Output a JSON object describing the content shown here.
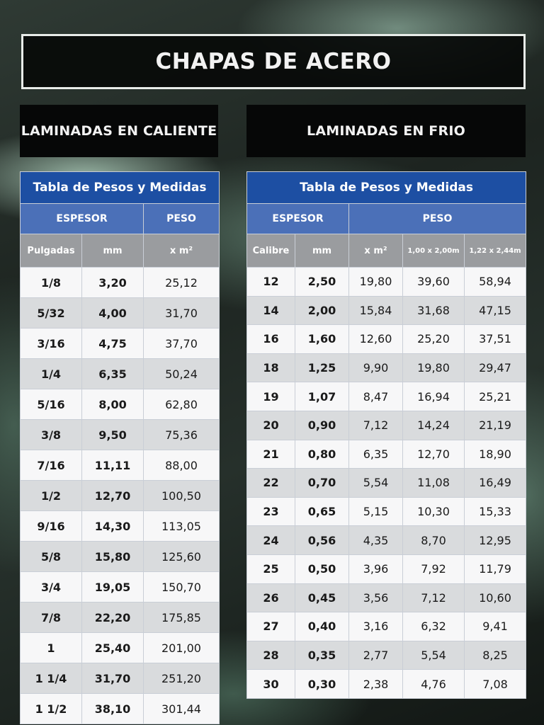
{
  "title": "CHAPAS DE ACERO",
  "left_section": {
    "heading": "LAMINADAS EN CALIENTE",
    "caption": "Tabla de Pesos y Medidas",
    "group_headers": [
      "ESPESOR",
      "PESO"
    ],
    "columns": [
      "Pulgadas",
      "mm",
      "x m²"
    ],
    "rows": [
      [
        "1/8",
        "3,20",
        "25,12"
      ],
      [
        "5/32",
        "4,00",
        "31,70"
      ],
      [
        "3/16",
        "4,75",
        "37,70"
      ],
      [
        "1/4",
        "6,35",
        "50,24"
      ],
      [
        "5/16",
        "8,00",
        "62,80"
      ],
      [
        "3/8",
        "9,50",
        "75,36"
      ],
      [
        "7/16",
        "11,11",
        "88,00"
      ],
      [
        "1/2",
        "12,70",
        "100,50"
      ],
      [
        "9/16",
        "14,30",
        "113,05"
      ],
      [
        "5/8",
        "15,80",
        "125,60"
      ],
      [
        "3/4",
        "19,05",
        "150,70"
      ],
      [
        "7/8",
        "22,20",
        "175,85"
      ],
      [
        "1",
        "25,40",
        "201,00"
      ],
      [
        "1  1/4",
        "31,70",
        "251,20"
      ],
      [
        "1  1/2",
        "38,10",
        "301,44"
      ]
    ]
  },
  "right_section": {
    "heading": "LAMINADAS EN FRIO",
    "caption": "Tabla de Pesos y Medidas",
    "group_headers": [
      "ESPESOR",
      "PESO"
    ],
    "columns": [
      "Calibre",
      "mm",
      "x m²",
      "1,00 x 2,00m",
      "1,22 x 2,44m"
    ],
    "rows": [
      [
        "12",
        "2,50",
        "19,80",
        "39,60",
        "58,94"
      ],
      [
        "14",
        "2,00",
        "15,84",
        "31,68",
        "47,15"
      ],
      [
        "16",
        "1,60",
        "12,60",
        "25,20",
        "37,51"
      ],
      [
        "18",
        "1,25",
        "9,90",
        "19,80",
        "29,47"
      ],
      [
        "19",
        "1,07",
        "8,47",
        "16,94",
        "25,21"
      ],
      [
        "20",
        "0,90",
        "7,12",
        "14,24",
        "21,19"
      ],
      [
        "21",
        "0,80",
        "6,35",
        "12,70",
        "18,90"
      ],
      [
        "22",
        "0,70",
        "5,54",
        "11,08",
        "16,49"
      ],
      [
        "23",
        "0,65",
        "5,15",
        "10,30",
        "15,33"
      ],
      [
        "24",
        "0,56",
        "4,35",
        "8,70",
        "12,95"
      ],
      [
        "25",
        "0,50",
        "3,96",
        "7,92",
        "11,79"
      ],
      [
        "26",
        "0,45",
        "3,56",
        "7,12",
        "10,60"
      ],
      [
        "27",
        "0,40",
        "3,16",
        "6,32",
        "9,41"
      ],
      [
        "28",
        "0,35",
        "2,77",
        "5,54",
        "8,25"
      ],
      [
        "30",
        "0,30",
        "2,38",
        "4,76",
        "7,08"
      ]
    ]
  }
}
